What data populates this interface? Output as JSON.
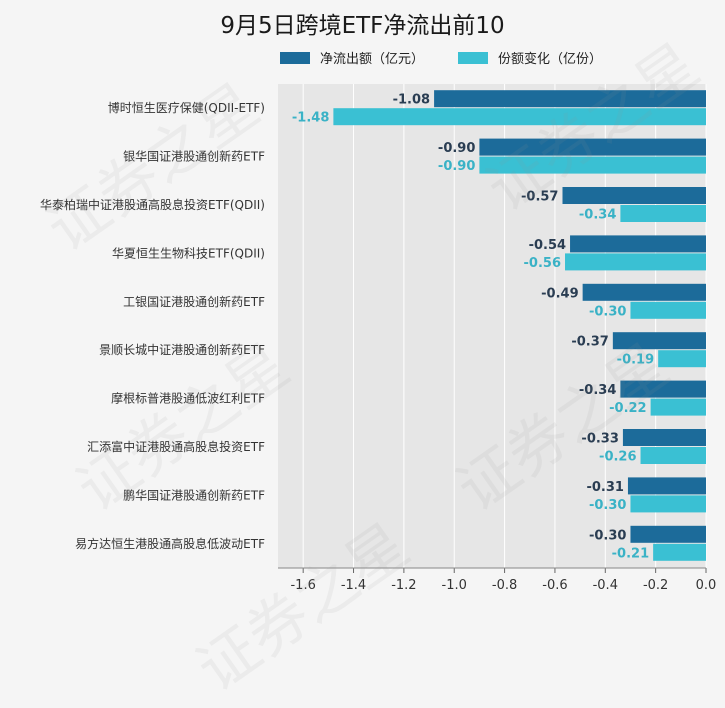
{
  "chart_data": {
    "type": "bar",
    "orientation": "horizontal",
    "title": "9月5日跨境ETF净流出前10",
    "categories": [
      "博时恒生医疗保健(QDII-ETF)",
      "银华国证港股通创新药ETF",
      "华泰柏瑞中证港股通高股息投资ETF(QDII)",
      "华夏恒生生物科技ETF(QDII)",
      "工银国证港股通创新药ETF",
      "景顺长城中证港股通创新药ETF",
      "摩根标普港股通低波红利ETF",
      "汇添富中证港股通高股息投资ETF",
      "鹏华国证港股通创新药ETF",
      "易方达恒生港股通高股息低波动ETF"
    ],
    "series": [
      {
        "name": "净流出额（亿元）",
        "color": "#1c6b9a",
        "values": [
          -1.08,
          -0.9,
          -0.57,
          -0.54,
          -0.49,
          -0.37,
          -0.34,
          -0.33,
          -0.31,
          -0.3
        ],
        "labels": [
          "-1.08",
          "-0.90",
          "-0.57",
          "-0.54",
          "-0.49",
          "-0.37",
          "-0.34",
          "-0.33",
          "-0.31",
          "-0.30"
        ]
      },
      {
        "name": "份额变化（亿份）",
        "color": "#3ac0d3",
        "values": [
          -1.48,
          -0.9,
          -0.34,
          -0.56,
          -0.3,
          -0.19,
          -0.22,
          -0.26,
          -0.3,
          -0.21
        ],
        "labels": [
          "-1.48",
          "-0.90",
          "-0.34",
          "-0.56",
          "-0.30",
          "-0.19",
          "-0.22",
          "-0.26",
          "-0.30",
          "-0.21"
        ]
      }
    ],
    "xlim": [
      -1.7,
      0.0
    ],
    "xticks": [
      -1.6,
      -1.4,
      -1.2,
      -1.0,
      -0.8,
      -0.6,
      -0.4,
      -0.2,
      0.0
    ],
    "xtick_labels": [
      "-1.6",
      "-1.4",
      "-1.2",
      "-1.0",
      "-0.8",
      "-0.6",
      "-0.4",
      "-0.2",
      "0.0"
    ],
    "grid": true,
    "legend_position": "top",
    "plot_background": "#e6e6e6",
    "watermark": "证券之星"
  }
}
